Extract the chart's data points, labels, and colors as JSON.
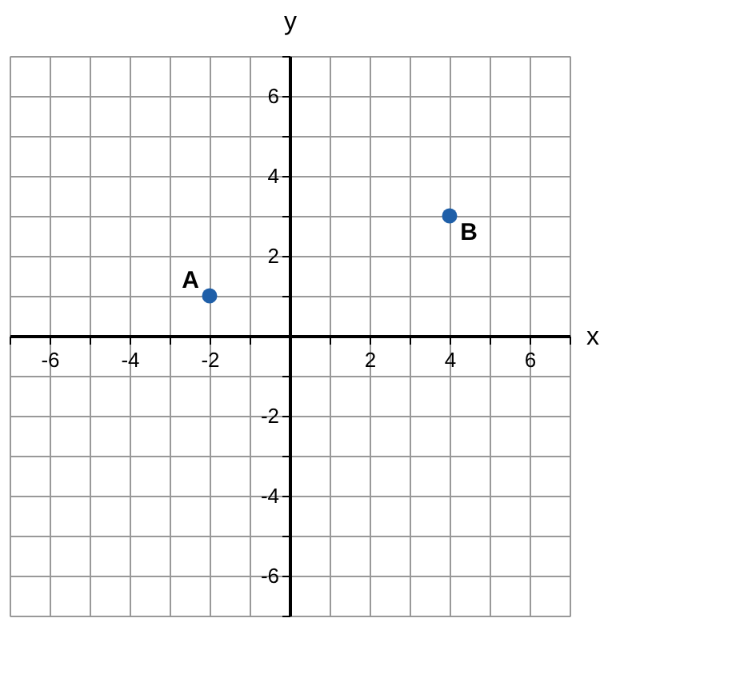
{
  "chart_data": {
    "type": "scatter",
    "xlabel": "x",
    "ylabel": "y",
    "x": [
      -2,
      4
    ],
    "values": [
      1,
      3
    ],
    "color": "#1f5fa8",
    "marker": "circle",
    "xlim": [
      -7,
      7
    ],
    "ylim": [
      -7,
      7
    ],
    "xticks": [
      {
        "value": -7,
        "label": null
      },
      -6,
      {
        "value": -5,
        "label": null
      },
      -4,
      {
        "value": -3,
        "label": null
      },
      -2,
      {
        "value": -1,
        "label": null
      },
      {
        "value": 0,
        "label": null
      },
      {
        "value": 1,
        "label": null
      },
      2,
      {
        "value": 3,
        "label": null
      },
      4,
      {
        "value": 5,
        "label": null
      },
      6,
      {
        "value": 7,
        "label": null
      }
    ],
    "yticks": [
      {
        "value": -7,
        "label": null
      },
      -6,
      {
        "value": -5,
        "label": null
      },
      -4,
      {
        "value": -3,
        "label": null
      },
      -2,
      {
        "value": -1,
        "label": null
      },
      {
        "value": 0,
        "label": null
      },
      {
        "value": 1,
        "label": null
      },
      2,
      {
        "value": 3,
        "label": null
      },
      4,
      {
        "value": 5,
        "label": null
      },
      6,
      {
        "value": 7,
        "label": null
      }
    ],
    "grid": true,
    "annotations": [
      {
        "text": "A",
        "x": -2,
        "y": 1
      },
      {
        "text": "B",
        "x": 4,
        "y": 3
      }
    ]
  }
}
